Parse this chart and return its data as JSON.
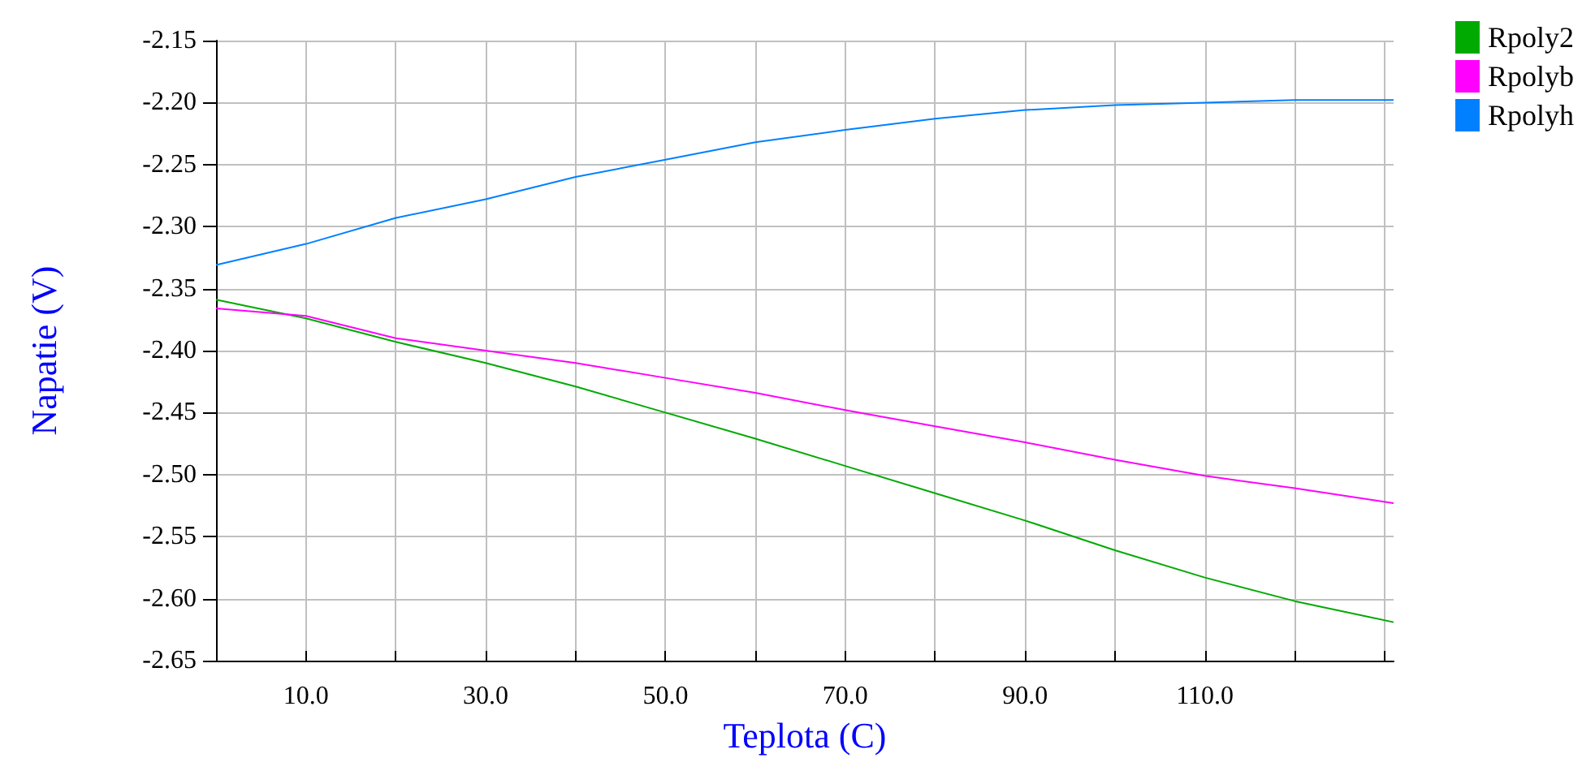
{
  "chart_data": {
    "type": "line",
    "xlabel": "Teplota (C)",
    "ylabel": "Napatie (V)",
    "x": [
      0,
      10,
      20,
      30,
      40,
      50,
      60,
      70,
      80,
      90,
      100,
      110,
      120,
      131
    ],
    "series": [
      {
        "name": "Rpoly2",
        "color": "#00aa00",
        "values": [
          -2.359,
          -2.374,
          -2.393,
          -2.41,
          -2.429,
          -2.45,
          -2.471,
          -2.493,
          -2.515,
          -2.537,
          -2.561,
          -2.583,
          -2.602,
          -2.619
        ]
      },
      {
        "name": "Rpolyb",
        "color": "#ff00ff",
        "values": [
          -2.366,
          -2.372,
          -2.39,
          -2.4,
          -2.41,
          -2.422,
          -2.434,
          -2.448,
          -2.461,
          -2.474,
          -2.488,
          -2.501,
          -2.511,
          -2.523
        ]
      },
      {
        "name": "Rpolyh",
        "color": "#0080ff",
        "values": [
          -2.331,
          -2.314,
          -2.293,
          -2.278,
          -2.26,
          -2.246,
          -2.232,
          -2.222,
          -2.213,
          -2.206,
          -2.202,
          -2.2,
          -2.198,
          -2.198
        ]
      }
    ],
    "xlim": [
      0,
      131
    ],
    "xticks": [
      {
        "value": 10,
        "label": "10.0"
      },
      {
        "value": 20,
        "label": null
      },
      {
        "value": 30,
        "label": "30.0"
      },
      {
        "value": 40,
        "label": null
      },
      {
        "value": 50,
        "label": "50.0"
      },
      {
        "value": 60,
        "label": null
      },
      {
        "value": 70,
        "label": "70.0"
      },
      {
        "value": 80,
        "label": null
      },
      {
        "value": 90,
        "label": "90.0"
      },
      {
        "value": 100,
        "label": null
      },
      {
        "value": 110,
        "label": "110.0"
      },
      {
        "value": 120,
        "label": null
      },
      {
        "value": 130,
        "label": null
      }
    ],
    "ylim": [
      -2.65,
      -2.15
    ],
    "yticks": [
      {
        "value": -2.65,
        "label": "-2.65"
      },
      {
        "value": -2.6,
        "label": "-2.60"
      },
      {
        "value": -2.55,
        "label": "-2.55"
      },
      {
        "value": -2.5,
        "label": "-2.50"
      },
      {
        "value": -2.45,
        "label": "-2.45"
      },
      {
        "value": -2.4,
        "label": "-2.40"
      },
      {
        "value": -2.35,
        "label": "-2.35"
      },
      {
        "value": -2.3,
        "label": "-2.30"
      },
      {
        "value": -2.25,
        "label": "-2.25"
      },
      {
        "value": -2.2,
        "label": "-2.20"
      },
      {
        "value": -2.15,
        "label": "-2.15"
      }
    ],
    "grid": true,
    "legend": "top right",
    "marker": "none",
    "line_style": "solid"
  }
}
